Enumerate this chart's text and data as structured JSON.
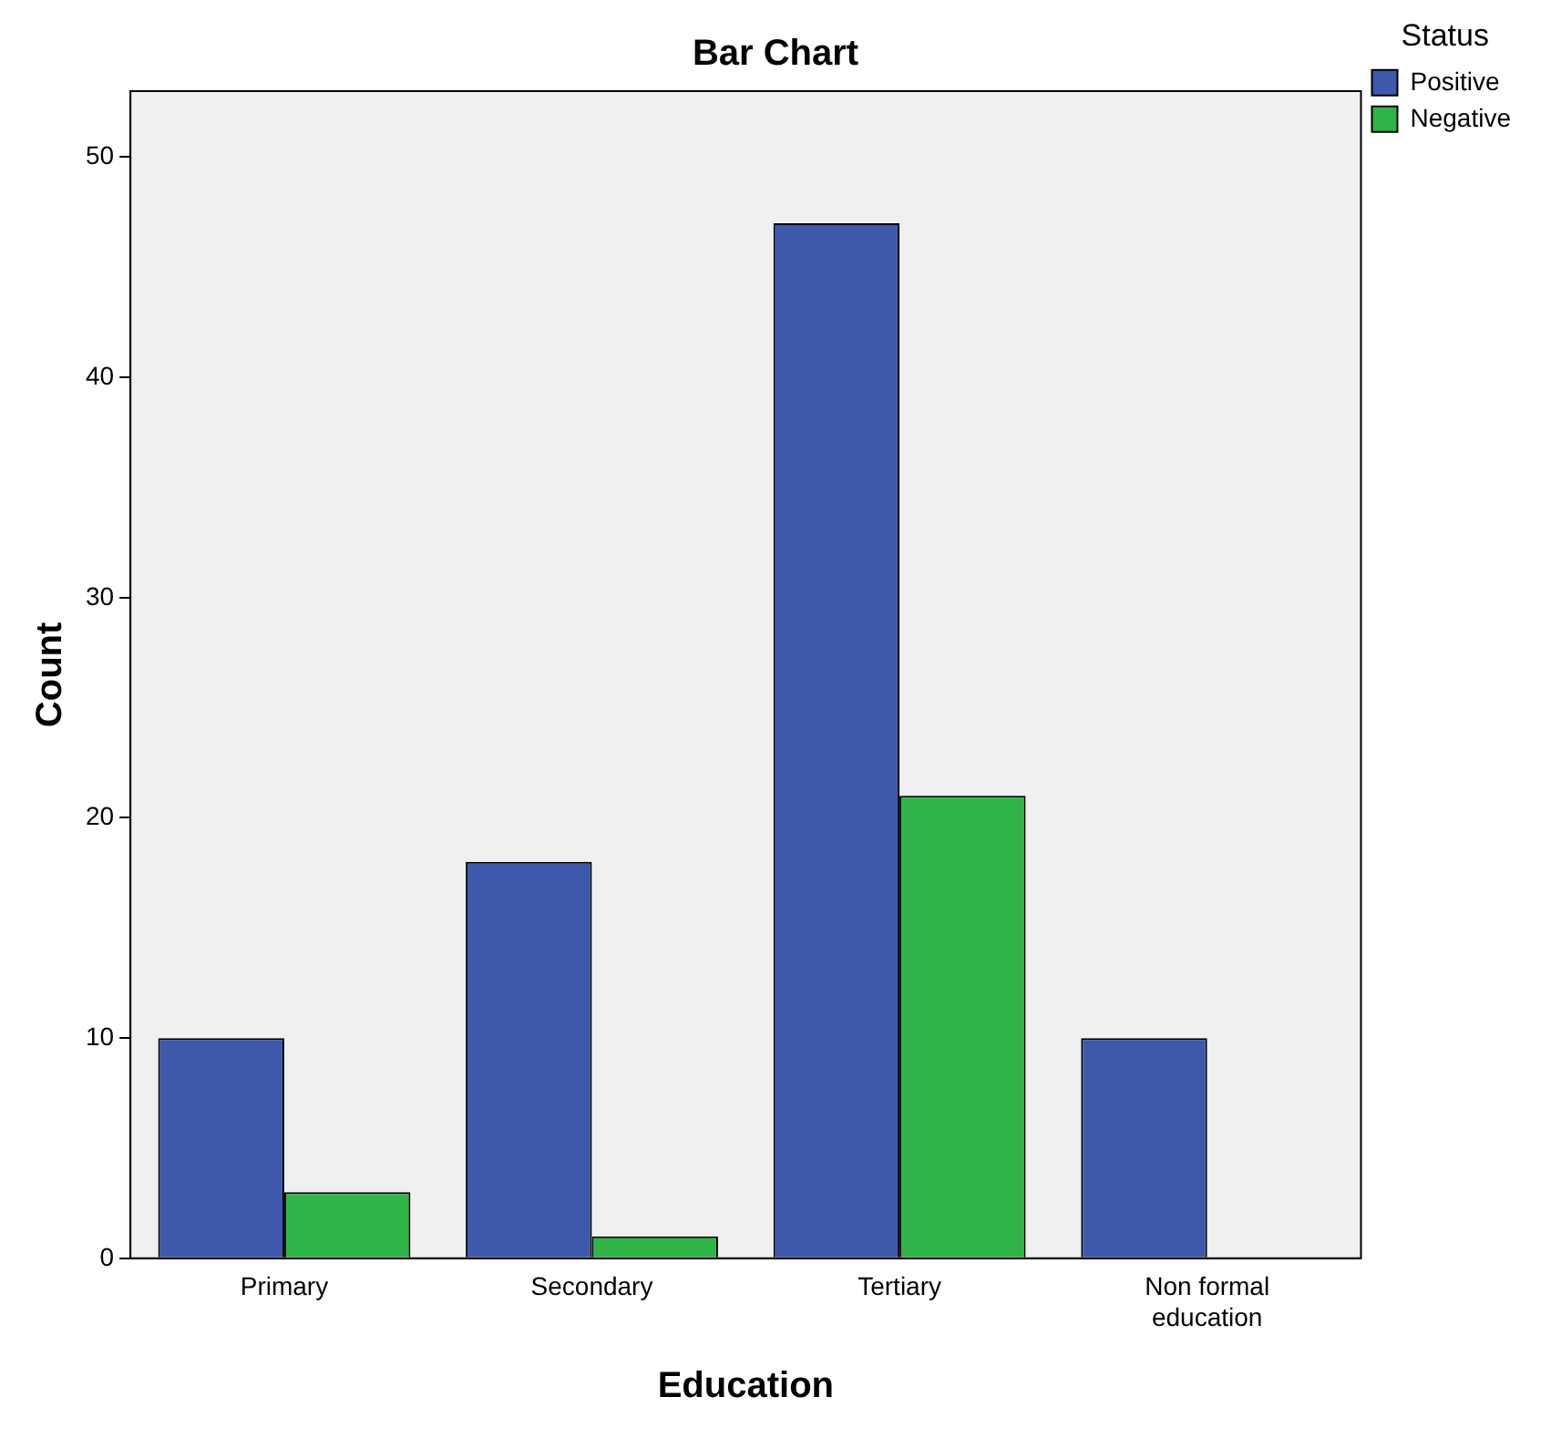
{
  "chart_data": {
    "type": "bar",
    "title": "Bar Chart",
    "xlabel": "Education",
    "ylabel": "Count",
    "legend_title": "Status",
    "categories": [
      "Primary",
      "Secondary",
      "Tertiary",
      "Non formal education"
    ],
    "series": [
      {
        "name": "Positive",
        "color": "#3e58ac",
        "values": [
          10,
          18,
          47,
          10
        ]
      },
      {
        "name": "Negative",
        "color": "#2fb547",
        "values": [
          3,
          1,
          21,
          0
        ]
      }
    ],
    "ylim": [
      0,
      53
    ],
    "yticks": [
      0,
      10,
      20,
      30,
      40,
      50
    ],
    "grid": false,
    "legend": "top right"
  }
}
